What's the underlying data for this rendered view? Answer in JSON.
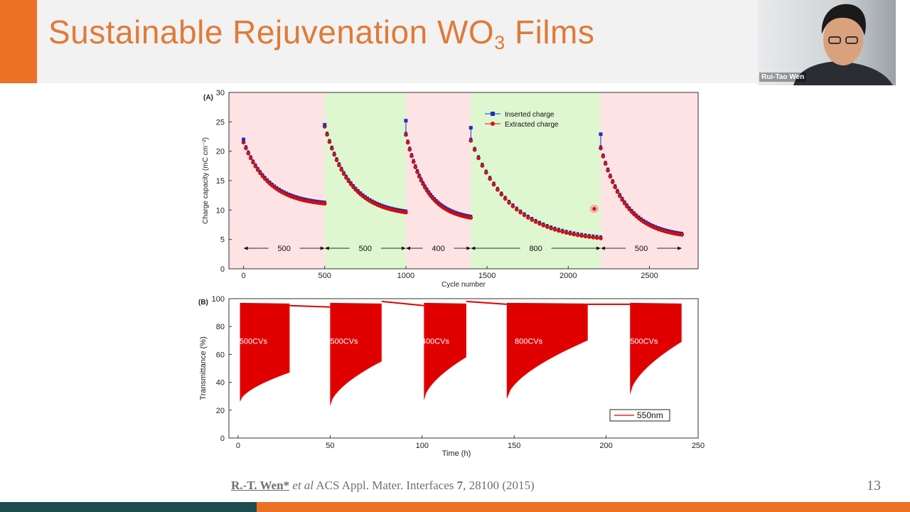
{
  "slide": {
    "title_main": "Sustainable Rejuvenation WO",
    "title_sub": "3",
    "title_tail": " Films",
    "page_number": "13",
    "accent_color": "#ec7125",
    "footer_dark_color": "#1e4d4f"
  },
  "video": {
    "participant_name": "Rui-Tao Wen"
  },
  "citation": {
    "author": "R.-T. Wen*",
    "etal": " et al",
    "journal": " ACS Appl. Mater. Interfaces ",
    "volume": "7",
    "rest": ", 28100 (2015)"
  },
  "chart_data": [
    {
      "panel": "(A)",
      "type": "scatter",
      "xlabel": "Cycle number",
      "ylabel": "Charge capacity (mC cm⁻²)",
      "xlim": [
        -90,
        2800
      ],
      "ylim": [
        0,
        30
      ],
      "xticks": [
        0,
        500,
        1000,
        1500,
        2000,
        2500
      ],
      "yticks": [
        0,
        5,
        10,
        15,
        20,
        25,
        30
      ],
      "legend_position": "top-center",
      "legend": [
        "Inserted   charge",
        "Extracted charge"
      ],
      "regions": [
        {
          "x0": -90,
          "x1": 500,
          "color": "#fde3e3"
        },
        {
          "x0": 500,
          "x1": 1000,
          "color": "#dff7d0"
        },
        {
          "x0": 1000,
          "x1": 1400,
          "color": "#fde3e3"
        },
        {
          "x0": 1400,
          "x1": 2200,
          "color": "#dff7d0"
        },
        {
          "x0": 2200,
          "x1": 2800,
          "color": "#fde3e3"
        }
      ],
      "segments": [
        {
          "x0": 0,
          "x1": 500,
          "y0": 21.5,
          "y1": 11.1,
          "inserted_peak": 22.0
        },
        {
          "x0": 500,
          "x1": 1000,
          "y0": 24.2,
          "y1": 9.6,
          "inserted_peak": 24.5
        },
        {
          "x0": 1000,
          "x1": 1400,
          "y0": 22.8,
          "y1": 8.7,
          "inserted_peak": 25.2
        },
        {
          "x0": 1400,
          "x1": 2200,
          "y0": 21.8,
          "y1": 5.2,
          "inserted_peak": 24.0
        },
        {
          "x0": 2200,
          "x1": 2700,
          "y0": 20.5,
          "y1": 5.8,
          "inserted_peak": 22.9
        }
      ],
      "outlier_point": {
        "x": 2160,
        "y": 10.2
      },
      "cycle_annotations": [
        {
          "label": "500",
          "from": 0,
          "to": 500
        },
        {
          "label": "500",
          "from": 500,
          "to": 1000
        },
        {
          "label": "400",
          "from": 1000,
          "to": 1400
        },
        {
          "label": "800",
          "from": 1400,
          "to": 2200
        },
        {
          "label": "500",
          "from": 2200,
          "to": 2700
        }
      ],
      "annotation_y": 3.5,
      "series": [
        {
          "name": "Inserted   charge",
          "color": "#1f2fbf",
          "marker": "square"
        },
        {
          "name": "Extracted charge",
          "color": "#e01010",
          "marker": "circle"
        }
      ]
    },
    {
      "panel": "(B)",
      "type": "line",
      "xlabel": "Time (h)",
      "ylabel": "Transmittance (%)",
      "xlim": [
        -5,
        250
      ],
      "ylim": [
        0,
        100
      ],
      "xticks": [
        0,
        50,
        100,
        150,
        200,
        250
      ],
      "yticks": [
        0,
        20,
        40,
        60,
        80,
        100
      ],
      "legend_position": "bottom-right",
      "legend": [
        "550nm"
      ],
      "series": [
        {
          "name": "550nm",
          "color": "#e00000"
        }
      ],
      "blocks": [
        {
          "label": "500CVs",
          "x0": 1,
          "x1": 28,
          "top": 97,
          "bottom_start": 26,
          "bottom_end": 47
        },
        {
          "label": "500CVs",
          "x0": 50,
          "x1": 78,
          "top": 97,
          "bottom_start": 23,
          "bottom_end": 55
        },
        {
          "label": "400CVs",
          "x0": 101,
          "x1": 124,
          "top": 97,
          "bottom_start": 27,
          "bottom_end": 58
        },
        {
          "label": "800CVs",
          "x0": 146,
          "x1": 190,
          "top": 97,
          "bottom_start": 28,
          "bottom_end": 70
        },
        {
          "label": "500CVs",
          "x0": 213,
          "x1": 241,
          "top": 97,
          "bottom_start": 31,
          "bottom_end": 69
        }
      ],
      "gap_levels": [
        {
          "x0": 28,
          "x1": 50,
          "y0": 95,
          "y1": 94
        },
        {
          "x0": 78,
          "x1": 101,
          "y0": 98,
          "y1": 95
        },
        {
          "x0": 124,
          "x1": 146,
          "y0": 98,
          "y1": 96
        },
        {
          "x0": 190,
          "x1": 213,
          "y0": 96,
          "y1": 96
        }
      ]
    }
  ]
}
